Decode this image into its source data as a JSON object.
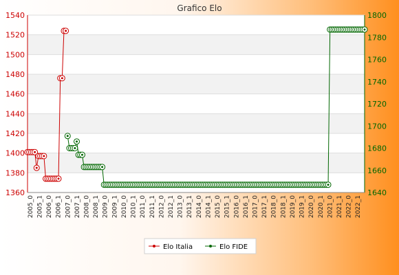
{
  "chart_data": {
    "type": "line",
    "title": "Grafico Elo",
    "x_labels": [
      "2005_0",
      "2005_1",
      "2006_0",
      "2006_1",
      "2007_0",
      "2007_1",
      "2008_0",
      "2008_1",
      "2009_0",
      "2009_1",
      "2010_0",
      "2010_1",
      "2011_0",
      "2011_1",
      "2012_0",
      "2012_1",
      "2013_0",
      "2013_1",
      "2014_0",
      "2014_1",
      "2015_0",
      "2015_1",
      "2016_0",
      "2016_1",
      "2017_0",
      "2017_1",
      "2018_0",
      "2018_1",
      "2019_0",
      "2019_1",
      "2020_0",
      "2020_1",
      "2021_0",
      "2021_1",
      "2022_0",
      "2022_1"
    ],
    "y_left": {
      "min": 1360,
      "max": 1540,
      "ticks": [
        1360,
        1380,
        1400,
        1420,
        1440,
        1460,
        1480,
        1500,
        1520,
        1540
      ],
      "color": "#cc0000"
    },
    "y_right": {
      "min": 1640,
      "max": 1800,
      "ticks": [
        1640,
        1660,
        1680,
        1700,
        1720,
        1740,
        1760,
        1780,
        1800
      ],
      "color": "#006600"
    },
    "grid": true,
    "legend_position": "bottom",
    "series": [
      {
        "name": "Elo Italia",
        "axis": "left",
        "color": "#cc0000",
        "values": [
          1401,
          1401,
          1401,
          1401,
          1401,
          1385,
          1397,
          1397,
          1397,
          1397,
          1374,
          1374,
          1374,
          1374,
          1374,
          1374,
          1374,
          1374,
          1476,
          1476,
          1524,
          1524
        ]
      },
      {
        "name": "Elo FIDE",
        "axis": "right",
        "color": "#006600",
        "start_index": 22,
        "first_values": [
          1691,
          1680,
          1680,
          1680,
          1680,
          1686,
          1674,
          1674,
          1674,
          1663,
          1663,
          1663,
          1663,
          1663,
          1663,
          1663,
          1663,
          1663,
          1663,
          1663
        ],
        "plateau_value": 1647,
        "plateau_count": 124,
        "final_value": 1787,
        "final_count": 20
      }
    ]
  }
}
